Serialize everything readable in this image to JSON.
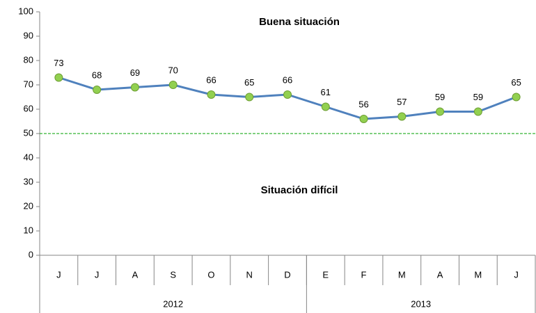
{
  "chart_data": {
    "type": "line",
    "categories": [
      "J",
      "J",
      "A",
      "S",
      "O",
      "N",
      "D",
      "E",
      "F",
      "M",
      "A",
      "M",
      "J"
    ],
    "values": [
      73,
      68,
      69,
      70,
      66,
      65,
      66,
      61,
      56,
      57,
      59,
      59,
      65
    ],
    "color": "#4f81bd",
    "marker_color": "#92d050",
    "year_groups": [
      {
        "label": "2012",
        "span": 7
      },
      {
        "label": "2013",
        "span": 6
      }
    ],
    "reference_line": {
      "value": 50,
      "color": "#00a000"
    },
    "annotations": [
      "Buena situación",
      "Situación difícil"
    ],
    "ylim": [
      0,
      100
    ],
    "yticks": [
      0,
      10,
      20,
      30,
      40,
      50,
      60,
      70,
      80,
      90,
      100
    ],
    "grid": false
  }
}
